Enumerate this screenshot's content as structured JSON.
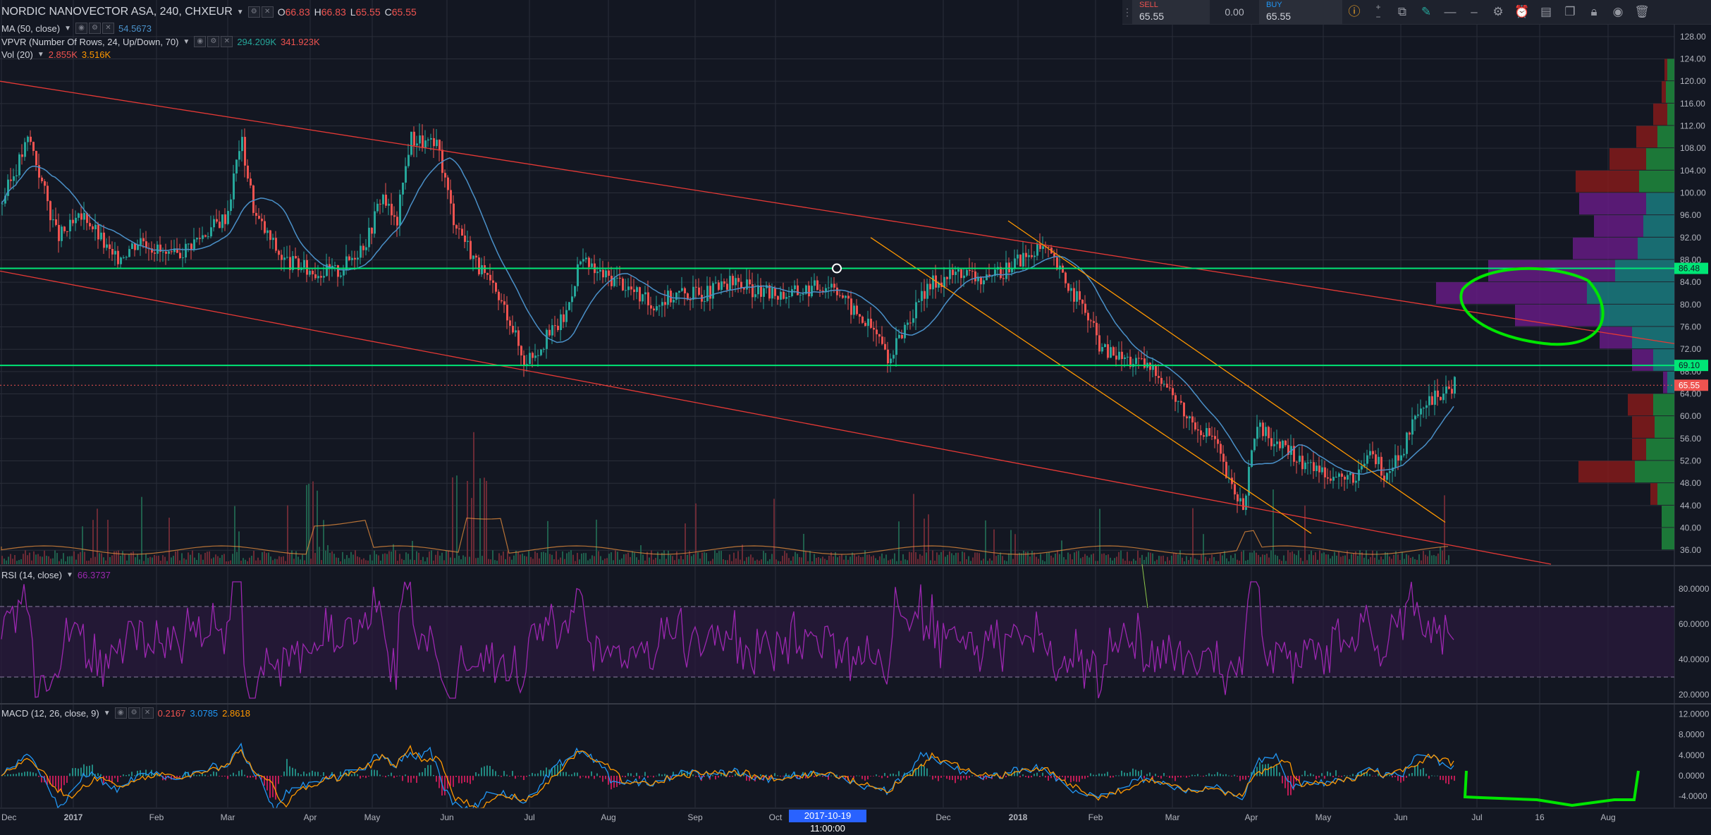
{
  "header": {
    "symbol": "NORDIC NANOVECTOR ASA, 240, CHXEUR",
    "ohlc": [
      {
        "key": "O",
        "value": "66.83"
      },
      {
        "key": "H",
        "value": "66.83"
      },
      {
        "key": "L",
        "value": "65.55"
      },
      {
        "key": "C",
        "value": "65.55"
      }
    ]
  },
  "indicators": {
    "ma": {
      "label": "MA (50, close)",
      "value": "54.5673"
    },
    "vpvr": {
      "label": "VPVR (Number Of Rows, 24, Up/Down, 70)",
      "up": "294.209K",
      "down": "341.923K"
    },
    "vol": {
      "label": "Vol (20)",
      "v1": "2.855K",
      "v2": "3.516K"
    },
    "rsi": {
      "label": "RSI (14, close)",
      "value": "66.3737"
    },
    "macd": {
      "label": "MACD (12, 26, close, 9)",
      "hist": "0.2167",
      "macd": "3.0785",
      "signal": "2.8618"
    }
  },
  "trade": {
    "sell_label": "SELL",
    "sell_price": "65.55",
    "spread": "0.00",
    "buy_label": "BUY",
    "buy_price": "65.55"
  },
  "toolbar_icons": [
    "info-icon",
    "plus-minus-icon",
    "chart-type-icon",
    "brush-icon",
    "line-style-icon",
    "line-width-icon",
    "gear-icon",
    "alert-icon",
    "layers-icon",
    "copy-icon",
    "lock-icon",
    "eye-icon",
    "trash-icon"
  ],
  "price_axis": [
    "128.00",
    "124.00",
    "120.00",
    "116.00",
    "112.00",
    "108.00",
    "104.00",
    "100.00",
    "96.00",
    "92.00",
    "88.00",
    "84.00",
    "80.00",
    "76.00",
    "72.00",
    "68.00",
    "64.00",
    "60.00",
    "56.00",
    "52.00",
    "48.00",
    "44.00",
    "40.00",
    "36.00"
  ],
  "price_tags": [
    {
      "label": "86.48",
      "price": 86.48,
      "color": "#00e676"
    },
    {
      "label": "69.10",
      "price": 69.1,
      "color": "#00e676"
    },
    {
      "label": "65.55",
      "price": 65.55,
      "color": "#ef5350"
    }
  ],
  "rsi_axis": [
    "80.0000",
    "60.0000",
    "40.0000",
    "20.0000"
  ],
  "macd_axis": [
    "12.0000",
    "8.0000",
    "4.0000",
    "0.0000",
    "-4.0000"
  ],
  "time_axis": [
    "Dec",
    "2017",
    "Feb",
    "Mar",
    "Apr",
    "May",
    "Jun",
    "Jul",
    "Aug",
    "Sep",
    "Oct",
    "Dec",
    "2018",
    "Feb",
    "Mar",
    "Apr",
    "May",
    "Jun",
    "Jul",
    "16",
    "Aug"
  ],
  "crosshair_date": "2017-10-19 11:00:00",
  "colors": {
    "background": "#131722",
    "up": "#26a69a",
    "down": "#ef5350",
    "ma": "#4a90c8",
    "rsi": "#9c27b0",
    "macd": "#2196f3",
    "signal": "#ff9800",
    "support": "#00e676",
    "channel": "#e53935",
    "wedge": "#ff9800",
    "annotation": "#00e600"
  },
  "chart_data": {
    "type": "candlestick",
    "y_range": [
      33.5,
      130
    ],
    "close_path": [
      [
        0,
        98
      ],
      [
        2,
        110
      ],
      [
        4,
        92
      ],
      [
        6,
        96
      ],
      [
        8,
        88
      ],
      [
        10,
        92
      ],
      [
        12,
        88
      ],
      [
        14,
        92
      ],
      [
        16,
        96
      ],
      [
        17,
        110
      ],
      [
        18,
        96
      ],
      [
        20,
        88
      ],
      [
        22,
        86
      ],
      [
        24,
        86
      ],
      [
        26,
        92
      ],
      [
        27,
        100
      ],
      [
        28,
        94
      ],
      [
        29,
        110
      ],
      [
        31,
        108
      ],
      [
        32,
        96
      ],
      [
        34,
        86
      ],
      [
        36,
        78
      ],
      [
        37,
        70
      ],
      [
        38,
        72
      ],
      [
        40,
        78
      ],
      [
        41,
        88
      ],
      [
        42,
        86
      ],
      [
        44,
        84
      ],
      [
        46,
        80
      ],
      [
        48,
        82
      ],
      [
        50,
        82
      ],
      [
        52,
        84
      ],
      [
        54,
        82
      ],
      [
        56,
        82
      ],
      [
        59,
        84
      ],
      [
        60,
        80
      ],
      [
        62,
        75
      ],
      [
        63,
        70
      ],
      [
        64,
        76
      ],
      [
        66,
        84
      ],
      [
        68,
        86
      ],
      [
        70,
        84
      ],
      [
        72,
        88
      ],
      [
        74,
        90
      ],
      [
        75,
        86
      ],
      [
        77,
        78
      ],
      [
        78,
        72
      ],
      [
        80,
        70
      ],
      [
        82,
        68
      ],
      [
        84,
        60
      ],
      [
        86,
        56
      ],
      [
        87,
        48
      ],
      [
        88,
        44
      ],
      [
        89,
        58
      ],
      [
        90,
        56
      ],
      [
        92,
        52
      ],
      [
        94,
        50
      ],
      [
        96,
        48
      ],
      [
        97,
        54
      ],
      [
        98,
        50
      ],
      [
        99,
        52
      ],
      [
        100,
        58
      ],
      [
        101,
        62
      ],
      [
        102,
        64
      ],
      [
        103,
        65.55
      ]
    ],
    "last_price": 65.55
  }
}
